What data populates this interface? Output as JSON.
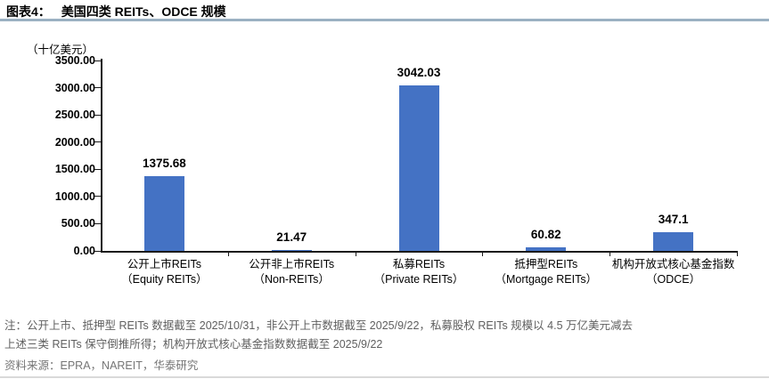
{
  "header": {
    "title_label": "图表4：",
    "title_text": "美国四类 REITs、ODCE 规模"
  },
  "chart_data": {
    "type": "bar",
    "title": "美国四类 REITs、ODCE 规模",
    "unit_label": "（十亿美元）",
    "categories": [
      {
        "zh": "公开上市REITs",
        "en": "（Equity REITs）"
      },
      {
        "zh": "公开非上市REITs",
        "en": "（Non-REITs）"
      },
      {
        "zh": "私募REITs",
        "en": "（Private REITs）"
      },
      {
        "zh": "抵押型REITs",
        "en": "（Mortgage REITs）"
      },
      {
        "zh": "机构开放式核心基金指数",
        "en": "（ODCE）"
      }
    ],
    "values": [
      1375.68,
      21.47,
      3042.03,
      60.82,
      347.1
    ],
    "value_labels": [
      "1375.68",
      "21.47",
      "3042.03",
      "60.82",
      "347.1"
    ],
    "ylim": [
      0,
      3500
    ],
    "y_ticks": [
      "3500.00",
      "3000.00",
      "2500.00",
      "2000.00",
      "1500.00",
      "1000.00",
      "500.00",
      "0.00"
    ],
    "xlabel": "",
    "ylabel": "（十亿美元）",
    "bar_color": "#4472C4",
    "grid": false,
    "legend_position": "none"
  },
  "footnotes": {
    "note_line1": "注：公开上市、抵押型 REITs 数据截至 2025/10/31，非公开上市数据截至 2025/9/22，私募股权 REITs 规模以 4.5 万亿美元减去",
    "note_line2": "上述三类 REITs 保守倒推所得；机构开放式核心基金指数数据截至 2025/9/22",
    "source": "资料来源：EPRA，NAREIT，华泰研究"
  }
}
